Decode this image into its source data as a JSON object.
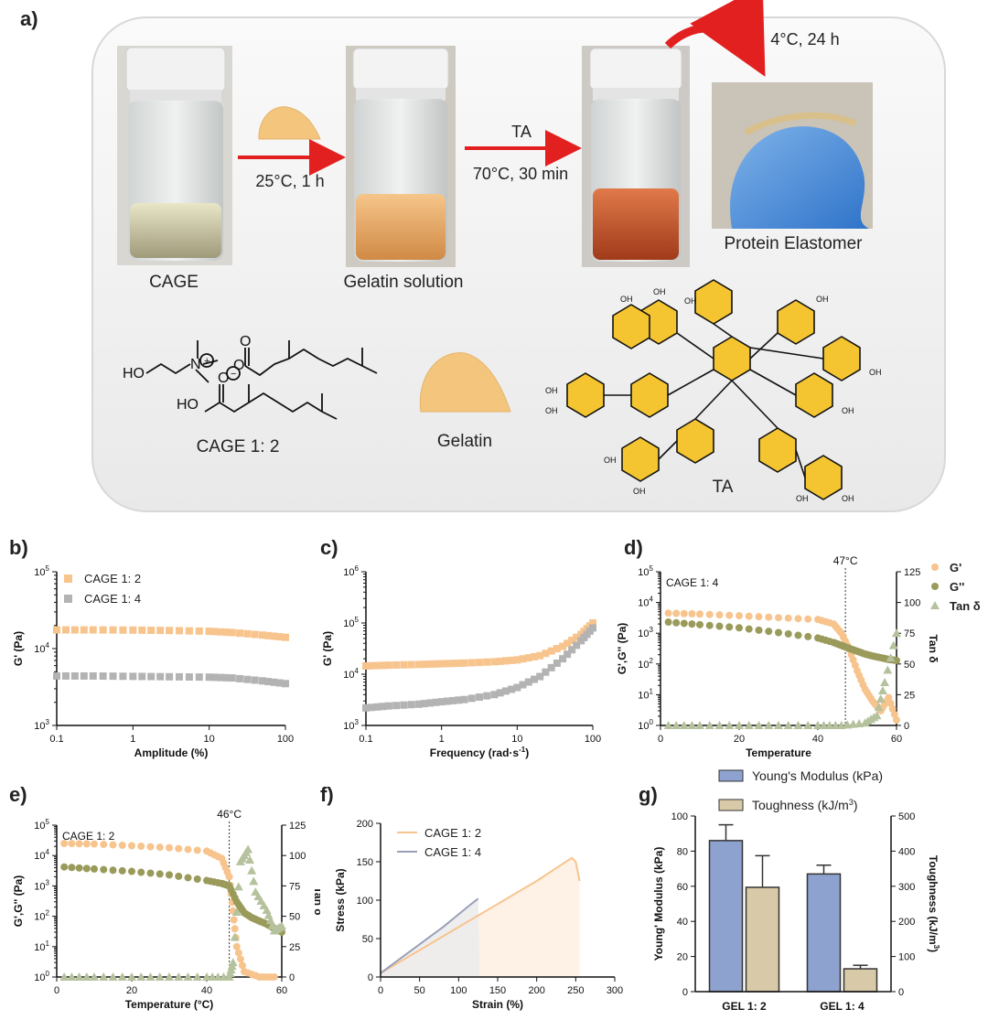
{
  "panel_labels": {
    "a": "a)",
    "b": "b)",
    "c": "c)",
    "d": "d)",
    "e": "e)",
    "f": "f)",
    "g": "g)"
  },
  "scheme": {
    "step1_condition": "25°C, 1 h",
    "step2_reagent": "TA",
    "step2_condition": "70°C, 30 min",
    "step3_condition": "4°C, 24 h",
    "vial1_label": "CAGE",
    "vial2_label": "Gelatin solution",
    "product_label": "Protein Elastomer",
    "cage_label": "CAGE 1: 2",
    "gelatin_label": "Gelatin",
    "ta_label": "TA",
    "ho_label": "HO",
    "oh_label": "OH"
  },
  "colors": {
    "orange": "#f7c48e",
    "gray": "#b3b3b3",
    "olive": "#9a9a5a",
    "sage": "#b5c29d",
    "blue": "#8da2cf",
    "tan": "#d8c9a8"
  },
  "chart_data": [
    {
      "id": "b",
      "type": "scatter",
      "xlabel": "Amplitude (%)",
      "ylabel": "G' (Pa)",
      "xscale": "log",
      "yscale": "log",
      "xlim": [
        0.1,
        100
      ],
      "ylim": [
        1000,
        100000
      ],
      "xticks": [
        "0.1",
        "1",
        "10",
        "100"
      ],
      "legend_position": "top-left",
      "series": [
        {
          "name": "CAGE 1: 2",
          "color": "#f7c48e",
          "marker": "square",
          "points": [
            [
              0.1,
              17500
            ],
            [
              0.3,
              17500
            ],
            [
              1,
              17400
            ],
            [
              3,
              17200
            ],
            [
              10,
              16800
            ],
            [
              20,
              16200
            ],
            [
              50,
              15000
            ],
            [
              100,
              14000
            ]
          ]
        },
        {
          "name": "CAGE 1: 4",
          "color": "#b3b3b3",
          "marker": "square",
          "points": [
            [
              0.1,
              4400
            ],
            [
              0.3,
              4400
            ],
            [
              1,
              4350
            ],
            [
              3,
              4300
            ],
            [
              10,
              4250
            ],
            [
              20,
              4150
            ],
            [
              50,
              3800
            ],
            [
              100,
              3500
            ]
          ]
        }
      ]
    },
    {
      "id": "c",
      "type": "scatter",
      "xlabel": "Frequency (rad·s",
      "xlabel_sup": "-1",
      "xlabel_end": ")",
      "ylabel": "G' (Pa)",
      "xscale": "log",
      "yscale": "log",
      "xlim": [
        0.1,
        100
      ],
      "ylim": [
        1000,
        1000000
      ],
      "xticks": [
        "0.1",
        "1",
        "10",
        "100"
      ],
      "series": [
        {
          "name": "CAGE 1: 2",
          "color": "#f7c48e",
          "marker": "square",
          "points": [
            [
              0.1,
              14500
            ],
            [
              0.2,
              15000
            ],
            [
              0.5,
              15500
            ],
            [
              1,
              16000
            ],
            [
              2,
              16500
            ],
            [
              5,
              17500
            ],
            [
              10,
              19000
            ],
            [
              20,
              23000
            ],
            [
              40,
              35000
            ],
            [
              70,
              60000
            ],
            [
              100,
              100000
            ]
          ]
        },
        {
          "name": "CAGE 1: 4",
          "color": "#b3b3b3",
          "marker": "square",
          "points": [
            [
              0.1,
              2200
            ],
            [
              0.2,
              2400
            ],
            [
              0.5,
              2600
            ],
            [
              1,
              2900
            ],
            [
              2,
              3200
            ],
            [
              5,
              4000
            ],
            [
              10,
              5500
            ],
            [
              20,
              9000
            ],
            [
              40,
              20000
            ],
            [
              70,
              45000
            ],
            [
              100,
              80000
            ]
          ]
        }
      ]
    },
    {
      "id": "d",
      "type": "scatter",
      "xlabel": "Temperature",
      "ylabel": "G',G'' (Pa)",
      "y2label": "Tan δ",
      "yscale": "log",
      "xlim": [
        0,
        60
      ],
      "ylim": [
        1,
        100000
      ],
      "y2lim": [
        0,
        125
      ],
      "xticks": [
        "0",
        "20",
        "40",
        "60"
      ],
      "y2ticks": [
        "0",
        "25",
        "50",
        "75",
        "100",
        "125"
      ],
      "annotation": "CAGE 1: 4",
      "vline_x": 47,
      "vline_label": "47°C",
      "legend_position": "top-right",
      "series": [
        {
          "name": "G'",
          "color": "#f7c48e",
          "marker": "circle",
          "points": [
            [
              2,
              4500
            ],
            [
              10,
              4200
            ],
            [
              20,
              3700
            ],
            [
              30,
              3200
            ],
            [
              40,
              2800
            ],
            [
              44,
              2000
            ],
            [
              46,
              1000
            ],
            [
              48,
              300
            ],
            [
              50,
              60
            ],
            [
              52,
              15
            ],
            [
              54,
              6
            ],
            [
              56,
              3
            ],
            [
              58,
              8
            ],
            [
              60,
              1.5
            ]
          ]
        },
        {
          "name": "G''",
          "color": "#9a9a5a",
          "marker": "circle",
          "points": [
            [
              2,
              2300
            ],
            [
              10,
              1900
            ],
            [
              20,
              1500
            ],
            [
              30,
              1050
            ],
            [
              40,
              700
            ],
            [
              44,
              500
            ],
            [
              46,
              400
            ],
            [
              48,
              320
            ],
            [
              50,
              260
            ],
            [
              52,
              210
            ],
            [
              54,
              180
            ],
            [
              56,
              160
            ],
            [
              58,
              140
            ],
            [
              60,
              130
            ]
          ]
        },
        {
          "name": "Tan δ",
          "color": "#b5c29d",
          "marker": "triangle",
          "axis": "right",
          "points": [
            [
              2,
              0
            ],
            [
              10,
              0
            ],
            [
              20,
              0
            ],
            [
              30,
              0
            ],
            [
              40,
              0
            ],
            [
              46,
              0
            ],
            [
              52,
              2
            ],
            [
              55,
              8
            ],
            [
              57,
              35
            ],
            [
              60,
              75
            ]
          ]
        }
      ]
    },
    {
      "id": "e",
      "type": "scatter",
      "xlabel": "Temperature (°C)",
      "ylabel": "G',G'' (Pa)",
      "y2label": "Tan δ",
      "yscale": "log",
      "xlim": [
        0,
        60
      ],
      "ylim": [
        1,
        100000
      ],
      "y2lim": [
        0,
        125
      ],
      "xticks": [
        "0",
        "20",
        "40",
        "60"
      ],
      "y2ticks": [
        "0",
        "25",
        "50",
        "75",
        "100",
        "125"
      ],
      "annotation": "CAGE 1: 2",
      "vline_x": 46,
      "vline_label": "46°C",
      "series": [
        {
          "name": "G'",
          "color": "#f7c48e",
          "marker": "circle",
          "points": [
            [
              2,
              25000
            ],
            [
              10,
              24000
            ],
            [
              20,
              21000
            ],
            [
              30,
              18000
            ],
            [
              40,
              14000
            ],
            [
              44,
              8000
            ],
            [
              46,
              2000
            ],
            [
              47,
              150
            ],
            [
              48,
              10
            ],
            [
              50,
              1.5
            ],
            [
              54,
              1
            ],
            [
              58,
              1
            ]
          ]
        },
        {
          "name": "G''",
          "color": "#9a9a5a",
          "marker": "circle",
          "points": [
            [
              2,
              4200
            ],
            [
              10,
              3600
            ],
            [
              20,
              3000
            ],
            [
              30,
              2300
            ],
            [
              40,
              1500
            ],
            [
              44,
              1200
            ],
            [
              46,
              1000
            ],
            [
              48,
              300
            ],
            [
              50,
              130
            ],
            [
              52,
              90
            ],
            [
              54,
              70
            ],
            [
              56,
              55
            ],
            [
              58,
              40
            ],
            [
              60,
              30
            ]
          ]
        },
        {
          "name": "Tan δ",
          "color": "#b5c29d",
          "marker": "triangle",
          "axis": "right",
          "points": [
            [
              2,
              0
            ],
            [
              10,
              0
            ],
            [
              20,
              0
            ],
            [
              30,
              0
            ],
            [
              40,
              0
            ],
            [
              46,
              0
            ],
            [
              47,
              12
            ],
            [
              49,
              95
            ],
            [
              51,
              105
            ],
            [
              53,
              70
            ],
            [
              56,
              55
            ],
            [
              58,
              38
            ],
            [
              60,
              42
            ]
          ]
        }
      ]
    },
    {
      "id": "f",
      "type": "area",
      "xlabel": "Strain (%)",
      "ylabel": "Stress (kPa)",
      "xlim": [
        0,
        300
      ],
      "ylim": [
        0,
        200
      ],
      "xticks": [
        "0",
        "50",
        "100",
        "150",
        "200",
        "250",
        "300"
      ],
      "yticks": [
        "0",
        "50",
        "100",
        "150",
        "200"
      ],
      "legend_position": "top-left",
      "series": [
        {
          "name": "CAGE 1: 2",
          "color": "#f7c48e",
          "points": [
            [
              0,
              5
            ],
            [
              50,
              35
            ],
            [
              100,
              65
            ],
            [
              150,
              95
            ],
            [
              200,
              125
            ],
            [
              230,
              145
            ],
            [
              245,
              155
            ],
            [
              250,
              150
            ],
            [
              255,
              125
            ]
          ]
        },
        {
          "name": "CAGE 1: 4",
          "color": "#9aa0b8",
          "points": [
            [
              0,
              5
            ],
            [
              40,
              35
            ],
            [
              80,
              65
            ],
            [
              110,
              90
            ],
            [
              125,
              102
            ],
            [
              127,
              5
            ]
          ]
        }
      ]
    },
    {
      "id": "g",
      "type": "bar",
      "categories": [
        "GEL 1: 2",
        "GEL 1: 4"
      ],
      "ylabel": "Young' Modulus (kPa)",
      "y2label": "Toughness (kJ/m",
      "y2label_sup": "3",
      "y2label_end": ")",
      "ylim": [
        0,
        100
      ],
      "y2lim": [
        0,
        500
      ],
      "yticks": [
        "0",
        "20",
        "40",
        "60",
        "80",
        "100"
      ],
      "y2ticks": [
        "0",
        "100",
        "200",
        "300",
        "400",
        "500"
      ],
      "legend_position": "top",
      "series": [
        {
          "name": "Young's Modulus (kPa)",
          "color": "#8da2cf",
          "axis": "left",
          "values": [
            86,
            67
          ],
          "errors": [
            9,
            5
          ]
        },
        {
          "name": "Toughness (kJ/m",
          "name_sup": "3",
          "name_end": ")",
          "color": "#d8c9a8",
          "axis": "right",
          "values": [
            297,
            65
          ],
          "errors": [
            90,
            10
          ]
        }
      ]
    }
  ]
}
